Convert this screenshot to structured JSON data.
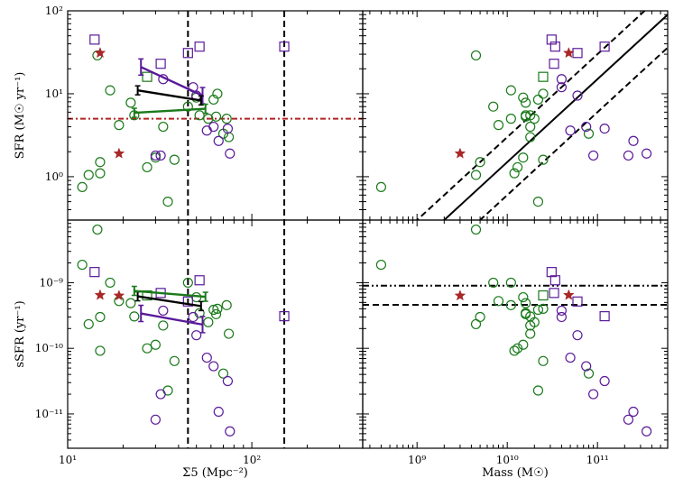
{
  "chart_data": {
    "type": "scatter",
    "title": "",
    "colors": {
      "green": "#1a7a1a",
      "purple": "#5a1a9a",
      "red": "#a82828",
      "black": "#000000",
      "redline": "#b22222"
    },
    "axes": {
      "env_xlabel": "Σ5 (Mpc⁻²)",
      "mass_xlabel": "Mass (M☉)",
      "sfr_ylabel": "SFR (M☉ yr⁻¹)",
      "ssfr_ylabel": "sSFR (yr⁻¹)",
      "env_xlim": [
        10,
        400
      ],
      "mass_xlim": [
        250000000.0,
        600000000000.0
      ],
      "sfr_ylim": [
        0.3,
        100
      ],
      "ssfr_ylim": [
        3e-12,
        9e-09
      ],
      "env_ticks": [
        {
          "v": 10,
          "label": "10¹"
        },
        {
          "v": 100,
          "label": "10²"
        }
      ],
      "mass_ticks": [
        {
          "v": 1000000000.0,
          "label": "10⁹"
        },
        {
          "v": 10000000000.0,
          "label": "10¹⁰"
        },
        {
          "v": 100000000000.0,
          "label": "10¹¹"
        }
      ],
      "sfr_ticks": [
        {
          "v": 1,
          "label": "10⁰"
        },
        {
          "v": 10,
          "label": "10¹"
        },
        {
          "v": 100,
          "label": "10²"
        }
      ],
      "ssfr_ticks": [
        {
          "v": 1e-11,
          "label": "10⁻¹¹"
        },
        {
          "v": 1e-10,
          "label": "10⁻¹⁰"
        },
        {
          "v": 1e-09,
          "label": "10⁻⁹"
        }
      ]
    },
    "green_circles": [
      {
        "env": 12,
        "mass": 400000000.0,
        "sfr": 0.75
      },
      {
        "env": 13,
        "mass": 4500000000.0,
        "sfr": 1.05
      },
      {
        "env": 15,
        "mass": 12000000000.0,
        "sfr": 1.1
      },
      {
        "env": 15,
        "mass": 5000000000.0,
        "sfr": 1.5
      },
      {
        "env": 14.5,
        "mass": 4500000000.0,
        "sfr": 29
      },
      {
        "env": 17,
        "mass": 11000000000.0,
        "sfr": 11
      },
      {
        "env": 19,
        "mass": 8000000000.0,
        "sfr": 4.2
      },
      {
        "env": 22,
        "mass": 16000000000.0,
        "sfr": 7.8
      },
      {
        "env": 23,
        "mass": 18000000000.0,
        "sfr": 5.5
      },
      {
        "env": 27,
        "mass": 13000000000.0,
        "sfr": 1.3
      },
      {
        "env": 30,
        "mass": 15000000000.0,
        "sfr": 1.7
      },
      {
        "env": 33,
        "mass": 18000000000.0,
        "sfr": 4
      },
      {
        "env": 35,
        "mass": 22000000000.0,
        "sfr": 0.5
      },
      {
        "env": 38,
        "mass": 25000000000.0,
        "sfr": 1.6
      },
      {
        "env": 45,
        "mass": 7000000000.0,
        "sfr": 7
      },
      {
        "env": 50,
        "mass": 15000000000.0,
        "sfr": 9
      },
      {
        "env": 52,
        "mass": 16000000000.0,
        "sfr": 5.5
      },
      {
        "env": 58,
        "mass": 20000000000.0,
        "sfr": 5
      },
      {
        "env": 62,
        "mass": 22000000000.0,
        "sfr": 8.5
      },
      {
        "env": 65,
        "mass": 25000000000.0,
        "sfr": 10
      },
      {
        "env": 70,
        "mass": 80000000000.0,
        "sfr": 3.3
      },
      {
        "env": 73,
        "mass": 11000000000.0,
        "sfr": 5
      },
      {
        "env": 75,
        "mass": 18000000000.0,
        "sfr": 3
      },
      {
        "env": 64,
        "mass": 16000000000.0,
        "sfr": 5.3
      }
    ],
    "purple_circles": [
      {
        "env": 30,
        "mass": 220000000000.0,
        "sfr": 1.8
      },
      {
        "env": 32,
        "mass": 90000000000.0,
        "sfr": 1.8
      },
      {
        "env": 48,
        "mass": 40000000000.0,
        "sfr": 12
      },
      {
        "env": 50,
        "mass": 60000000000.0,
        "sfr": 9.5
      },
      {
        "env": 57,
        "mass": 50000000000.0,
        "sfr": 3.6
      },
      {
        "env": 62,
        "mass": 75000000000.0,
        "sfr": 4
      },
      {
        "env": 66,
        "mass": 250000000000.0,
        "sfr": 2.7
      },
      {
        "env": 74,
        "mass": 120000000000.0,
        "sfr": 3.8
      },
      {
        "env": 76,
        "mass": 350000000000.0,
        "sfr": 1.9
      },
      {
        "env": 33,
        "mass": 40000000000.0,
        "sfr": 15
      }
    ],
    "purple_squares": [
      {
        "env": 14,
        "mass": 31000000000.0,
        "sfr": 45
      },
      {
        "env": 32,
        "mass": 33000000000.0,
        "sfr": 23
      },
      {
        "env": 45,
        "mass": 60000000000.0,
        "sfr": 31
      },
      {
        "env": 150,
        "mass": 120000000000.0,
        "sfr": 37
      },
      {
        "env": 52,
        "mass": 34000000000.0,
        "sfr": 37
      }
    ],
    "green_squares": [
      {
        "env": 27,
        "mass": 25000000000.0,
        "sfr": 16
      }
    ],
    "red_stars": [
      {
        "env": 15,
        "mass": 48000000000.0,
        "sfr": 31
      },
      {
        "env": 19,
        "mass": 3000000000.0,
        "sfr": 1.9
      }
    ],
    "binned_tracks": [
      {
        "name": "purple",
        "env": [
          25,
          54
        ],
        "sfr": [
          21,
          9.5
        ],
        "ssfr": [
          3.4e-10,
          2.3e-10
        ]
      },
      {
        "name": "black",
        "env": [
          24,
          53
        ],
        "sfr": [
          11,
          8.3
        ],
        "ssfr": [
          6.2e-10,
          4.4e-10
        ]
      },
      {
        "name": "green",
        "env": [
          23,
          56
        ],
        "sfr": [
          5.9,
          6.6
        ],
        "ssfr": [
          7.5e-10,
          6.1e-10
        ]
      }
    ],
    "reference_lines": {
      "sfr_hline": 5,
      "env_vlines": [
        45,
        150
      ],
      "ssfr_hline_dashdot": 9e-10,
      "ssfr_hline_dashed": 4.6e-10
    }
  }
}
